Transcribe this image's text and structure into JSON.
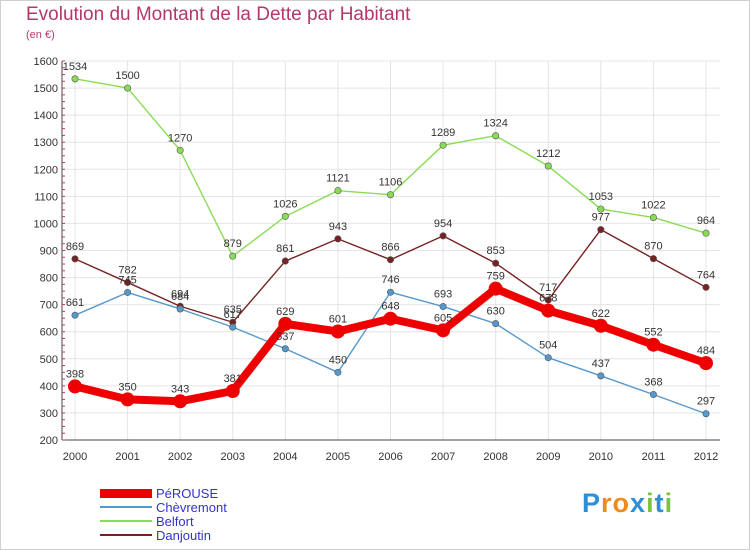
{
  "chart_data": {
    "type": "line",
    "title": "Evolution du Montant de la Dette par Habitant",
    "subtitle": "(en €)",
    "xlabel": "",
    "ylabel": "",
    "categories": [
      "2000",
      "2001",
      "2002",
      "2003",
      "2004",
      "2005",
      "2006",
      "2007",
      "2008",
      "2009",
      "2010",
      "2011",
      "2012"
    ],
    "ylim": [
      200,
      1600
    ],
    "yticks": [
      200,
      300,
      400,
      500,
      600,
      700,
      800,
      900,
      1000,
      1100,
      1200,
      1300,
      1400,
      1500,
      1600
    ],
    "grid": true,
    "legend_position": "bottom-left",
    "series": [
      {
        "name": "PéROUSE",
        "color": "#ee0000",
        "values": [
          398,
          350,
          343,
          381,
          629,
          601,
          648,
          605,
          759,
          678,
          622,
          552,
          484
        ]
      },
      {
        "name": "Chèvremont",
        "color": "#5599cc",
        "values": [
          661,
          745,
          684,
          617,
          537,
          450,
          746,
          693,
          630,
          504,
          437,
          368,
          297
        ]
      },
      {
        "name": "Belfort",
        "color": "#88dd55",
        "values": [
          1534,
          1500,
          1270,
          879,
          1026,
          1121,
          1106,
          1289,
          1324,
          1212,
          1053,
          1022,
          964
        ]
      },
      {
        "name": "Danjoutin",
        "color": "#772222",
        "values": [
          869,
          782,
          694,
          635,
          861,
          943,
          866,
          954,
          853,
          717,
          977,
          870,
          764
        ]
      }
    ]
  },
  "logo": {
    "letters": [
      "P",
      "r",
      "o",
      "x",
      "i",
      "t",
      "i"
    ],
    "colors": [
      "#2d8fd8",
      "#f08a1c",
      "#f08a1c",
      "#2d8fd8",
      "#7cc242",
      "#2d8fd8",
      "#7cc242"
    ]
  }
}
